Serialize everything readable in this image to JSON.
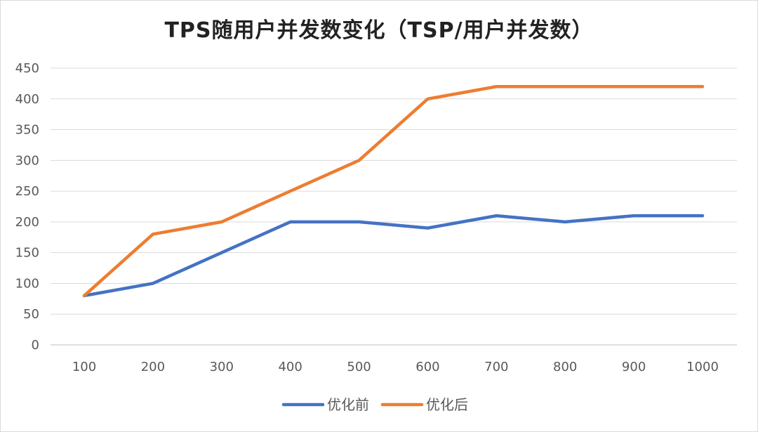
{
  "chart_data": {
    "type": "line",
    "title": "TPS随用户并发数变化（TSP/用户并发数）",
    "categories": [
      "100",
      "200",
      "300",
      "400",
      "500",
      "600",
      "700",
      "800",
      "900",
      "1000"
    ],
    "ylim": [
      0,
      450
    ],
    "yticks": [
      "0",
      "50",
      "100",
      "150",
      "200",
      "250",
      "300",
      "350",
      "400",
      "450"
    ],
    "grid": true,
    "legend_position": "bottom",
    "series": [
      {
        "name": "优化前",
        "color": "#4472c4",
        "values": [
          80,
          100,
          150,
          200,
          200,
          190,
          210,
          200,
          210,
          210
        ]
      },
      {
        "name": "优化后",
        "color": "#ed7d31",
        "values": [
          80,
          180,
          200,
          250,
          300,
          400,
          420,
          420,
          420,
          420
        ]
      }
    ]
  }
}
